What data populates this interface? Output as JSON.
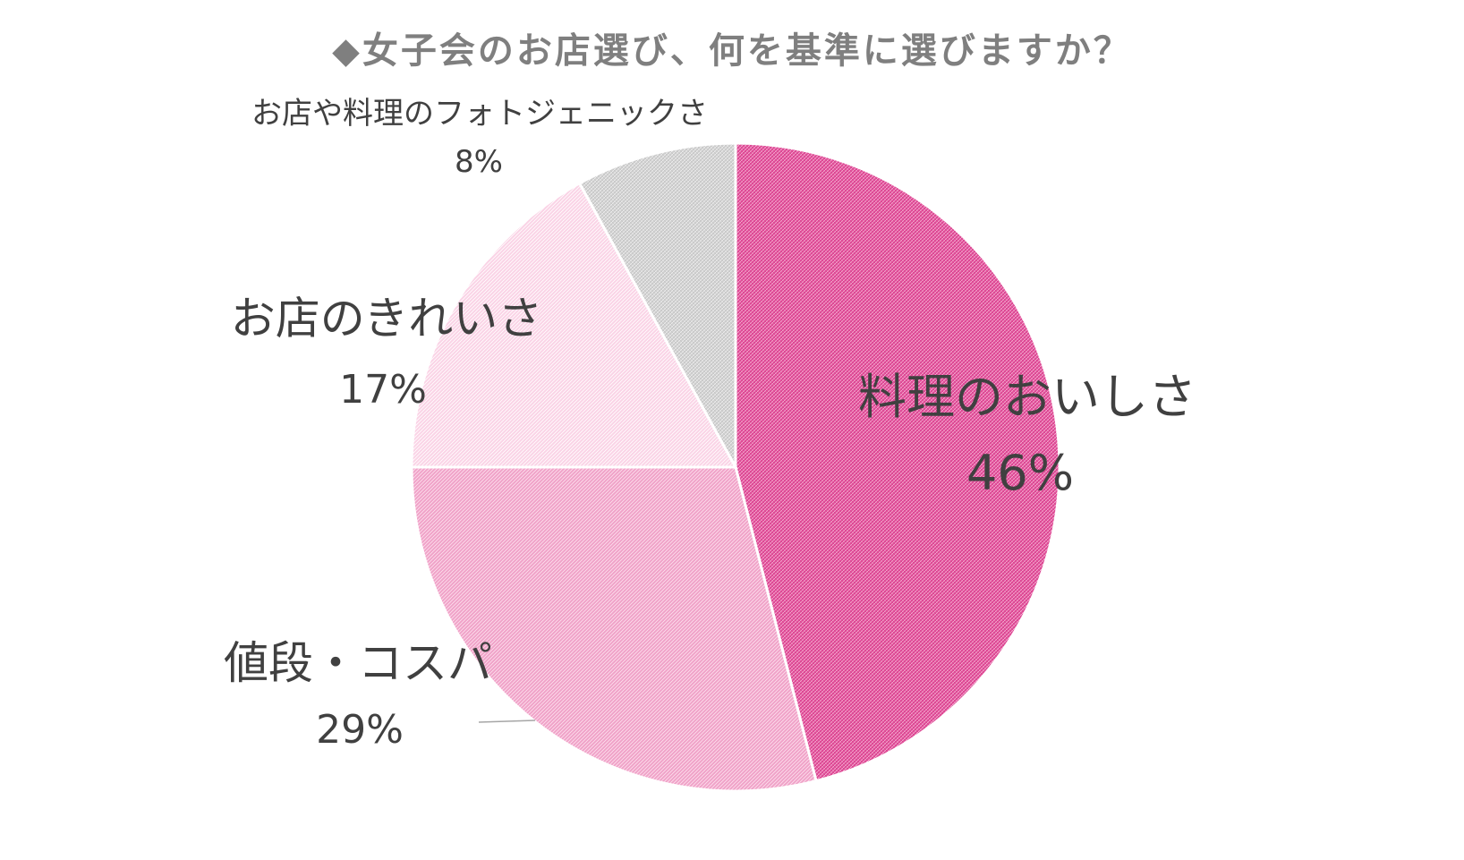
{
  "chart_data": {
    "type": "pie",
    "title": "◆女子会のお店選び、何を基準に選びますか？",
    "start_angle_deg": 0,
    "direction": "clockwise",
    "slices": [
      {
        "label": "料理のおいしさ",
        "value": 46,
        "value_label": "46%",
        "color": "#e2509a"
      },
      {
        "label": "値段・コスパ",
        "value": 29,
        "value_label": "29%",
        "color": "#f0a2c8"
      },
      {
        "label": "お店のきれいさ",
        "value": 17,
        "value_label": "17%",
        "color": "#fad3e6"
      },
      {
        "label": "お店や料理のフォトジェニックさ",
        "value": 8,
        "value_label": "8%",
        "color": "#cfcfcf"
      }
    ]
  }
}
